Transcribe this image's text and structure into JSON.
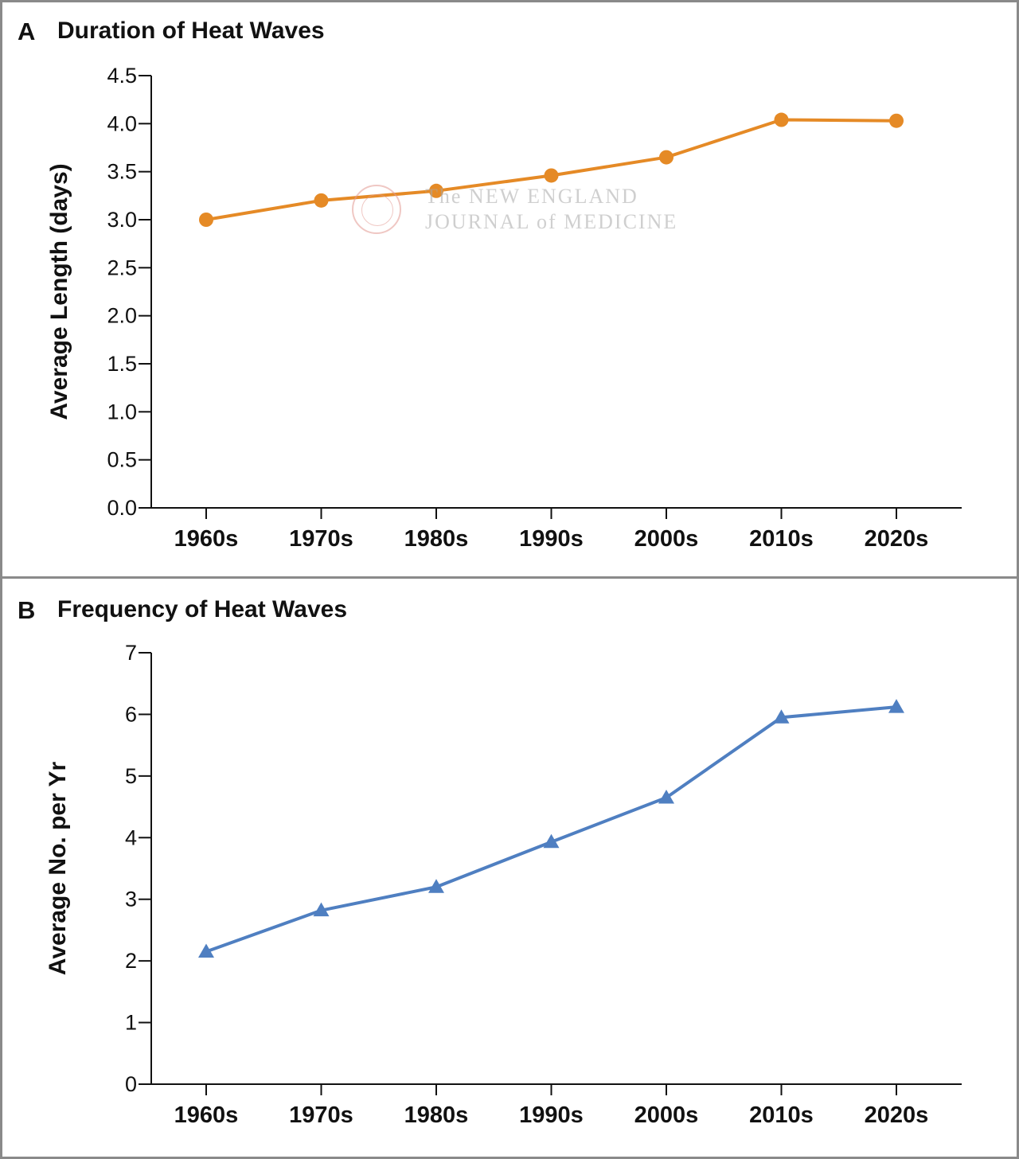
{
  "panels": [
    {
      "letter": "A",
      "title": "Duration of Heat Waves",
      "watermark": {
        "line1": "The NEW ENGLAND",
        "line2": "JOURNAL of MEDICINE"
      }
    },
    {
      "letter": "B",
      "title": "Frequency of Heat Waves"
    }
  ],
  "chart_data": [
    {
      "type": "line",
      "title": "Duration of Heat Waves",
      "categories": [
        "1960s",
        "1970s",
        "1980s",
        "1990s",
        "2000s",
        "2010s",
        "2020s"
      ],
      "series": [
        {
          "values": [
            3.0,
            3.2,
            3.3,
            3.46,
            3.65,
            4.04,
            4.03
          ]
        }
      ],
      "ylabel": "Average Length (days)",
      "xlabel": "",
      "ylim": [
        0,
        4.5
      ],
      "yticks": [
        "0.0",
        "0.5",
        "1.0",
        "1.5",
        "2.0",
        "2.5",
        "3.0",
        "3.5",
        "4.0",
        "4.5"
      ],
      "marker": "circle",
      "color": "#e58a26",
      "grid": false
    },
    {
      "type": "line",
      "title": "Frequency of Heat Waves",
      "categories": [
        "1960s",
        "1970s",
        "1980s",
        "1990s",
        "2000s",
        "2010s",
        "2020s"
      ],
      "series": [
        {
          "values": [
            2.15,
            2.82,
            3.2,
            3.93,
            4.65,
            5.95,
            6.12
          ]
        }
      ],
      "ylabel": "Average No. per Yr",
      "xlabel": "",
      "ylim": [
        0,
        7
      ],
      "yticks": [
        "0",
        "1",
        "2",
        "3",
        "4",
        "5",
        "6",
        "7"
      ],
      "marker": "triangle",
      "color": "#4f7fc1",
      "grid": false
    }
  ]
}
